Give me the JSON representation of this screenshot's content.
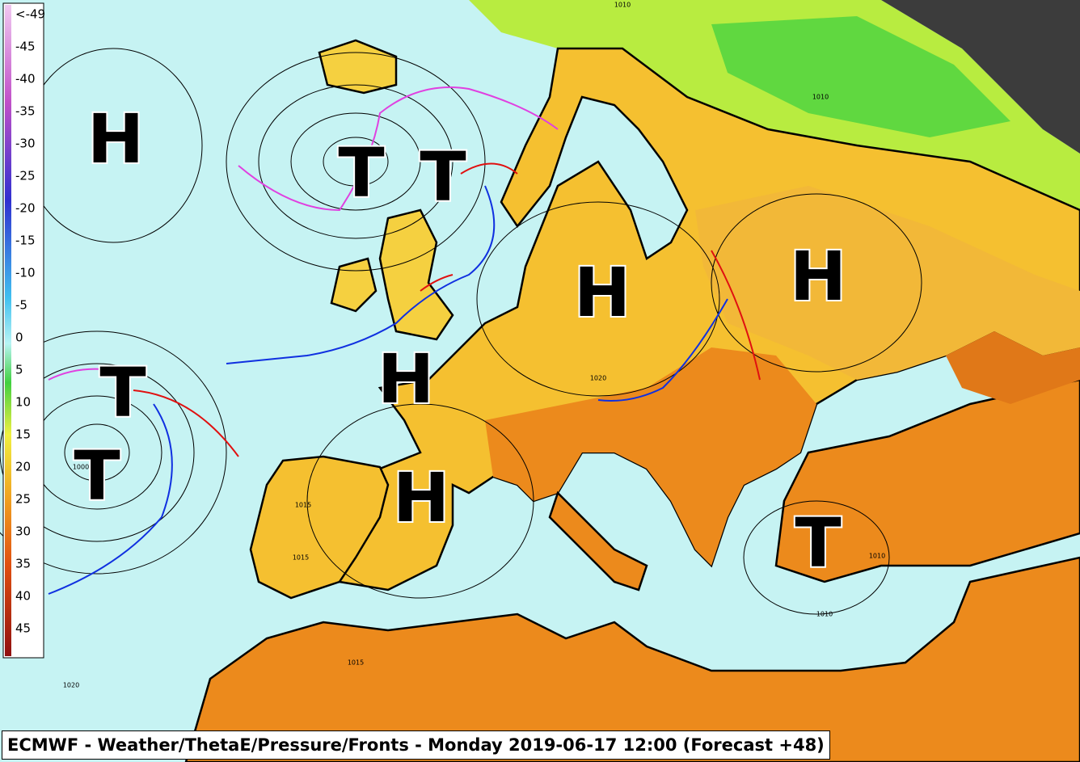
{
  "legend": {
    "labels": [
      "<-49",
      "-45",
      "-40",
      "-35",
      "-30",
      "-25",
      "-20",
      "-15",
      "-10",
      "-5",
      "0",
      "5",
      "10",
      "15",
      "20",
      "25",
      "30",
      "35",
      "40",
      "45"
    ]
  },
  "pressure_centers": [
    "H",
    "T",
    "T",
    "H",
    "H",
    "H",
    "T",
    "T",
    "H",
    "T"
  ],
  "isobar_labels": [
    "1010",
    "1010",
    "1020",
    "1015",
    "1015",
    "1010",
    "1010",
    "1020",
    "1000",
    "1015"
  ],
  "footer": {
    "title": "ECMWF - Weather/ThetaE/Pressure/Fronts - Monday 2019-06-17 12:00 (Forecast +48)"
  }
}
